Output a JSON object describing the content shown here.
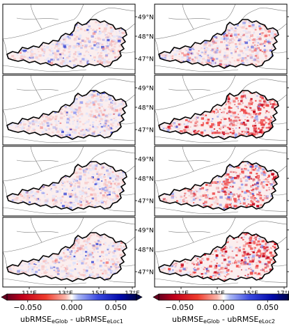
{
  "lat_labels": [
    "49°N",
    "48°N",
    "47°N"
  ],
  "lon_labels": [
    "11°E",
    "13°E",
    "15°E",
    "17°E"
  ],
  "colorbars": [
    {
      "ticks": [
        "−0.050",
        "0.000",
        "0.050"
      ],
      "label_main_1": "ubRMSE",
      "label_sub_1": "eGlob",
      "label_sep": " - ",
      "label_main_2": "ubRMSE",
      "label_sub_2": "eLoc1"
    },
    {
      "ticks": [
        "−0.050",
        "0.000",
        "0.050"
      ],
      "label_main_1": "ubRMSE",
      "label_sub_1": "eGlob",
      "label_sep": " - ",
      "label_main_2": "ubRMSE",
      "label_sub_2": "eLoc2"
    }
  ],
  "colors": {
    "negative": "#b2001c",
    "neutral": "#ffffff",
    "positive": "#00087a",
    "border": "#000000",
    "neighbor_border": "#7a7a7a"
  },
  "panels": [
    {
      "col": 0,
      "row": 0,
      "red_intensity": 0.12,
      "blue_intensity": 0.18
    },
    {
      "col": 1,
      "row": 0,
      "red_intensity": 0.28,
      "blue_intensity": 0.22
    },
    {
      "col": 0,
      "row": 1,
      "red_intensity": 0.1,
      "blue_intensity": 0.15
    },
    {
      "col": 1,
      "row": 1,
      "red_intensity": 0.75,
      "blue_intensity": 0.08
    },
    {
      "col": 0,
      "row": 2,
      "red_intensity": 0.1,
      "blue_intensity": 0.22
    },
    {
      "col": 1,
      "row": 2,
      "red_intensity": 0.65,
      "blue_intensity": 0.14
    },
    {
      "col": 0,
      "row": 3,
      "red_intensity": 0.14,
      "blue_intensity": 0.14
    },
    {
      "col": 1,
      "row": 3,
      "red_intensity": 0.7,
      "blue_intensity": 0.12
    }
  ]
}
